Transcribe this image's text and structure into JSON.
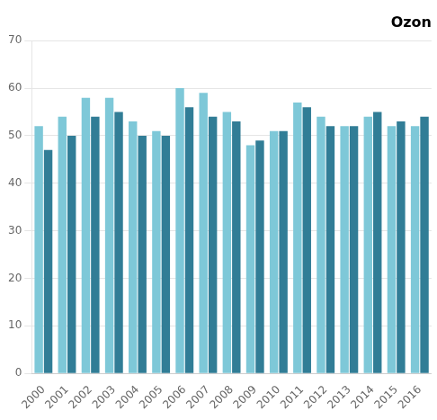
{
  "chart_data": {
    "type": "bar",
    "title": "Ozon",
    "categories": [
      "2000",
      "2001",
      "2002",
      "2003",
      "2004",
      "2005",
      "2006",
      "2007",
      "2008",
      "2009",
      "2010",
      "2011",
      "2012",
      "2013",
      "2014",
      "2015",
      "2016"
    ],
    "series": [
      {
        "color": "#7ec8d8",
        "values": [
          52,
          54,
          58,
          58,
          53,
          51,
          60,
          59,
          55,
          48,
          51,
          57,
          54,
          52,
          54,
          52,
          52
        ]
      },
      {
        "color": "#317d96",
        "values": [
          47,
          50,
          54,
          55,
          50,
          50,
          56,
          54,
          53,
          49,
          51,
          56,
          52,
          52,
          55,
          53,
          54
        ]
      }
    ],
    "ylim": [
      0,
      70
    ],
    "yticks": [
      0,
      10,
      20,
      30,
      40,
      50,
      60,
      70
    ],
    "grid": true
  }
}
